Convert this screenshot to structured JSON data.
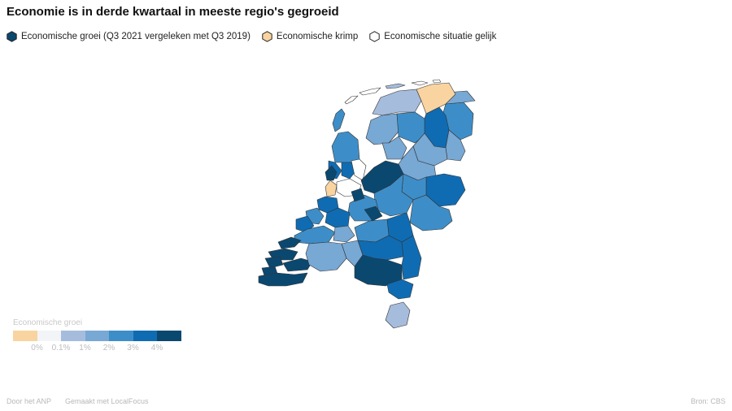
{
  "title": "Economie is in derde kwartaal in meeste regio's gegroeid",
  "legend": {
    "items": [
      {
        "label": "Economische groei (Q3 2021 vergeleken met Q3 2019)",
        "color": "#0b4870",
        "icon": "hexagon-icon"
      },
      {
        "label": "Economische krimp",
        "color": "#f9d4a0",
        "icon": "hexagon-icon"
      },
      {
        "label": "Economische situatie gelijk",
        "color": "#ffffff",
        "icon": "hexagon-icon"
      }
    ]
  },
  "scale": {
    "title": "Economische groei",
    "colors": [
      "#f9d4a0",
      "#f2f4f7",
      "#a6bcdd",
      "#78a8d4",
      "#3d8ec8",
      "#0f6cb3",
      "#0b4870"
    ],
    "ticks": [
      "0%",
      "0.1%",
      "1%",
      "2%",
      "3%",
      "4%"
    ]
  },
  "footer": {
    "by": "Door het ANP",
    "made": "Gemaakt met LocalFocus",
    "source": "Bron: CBS"
  }
}
